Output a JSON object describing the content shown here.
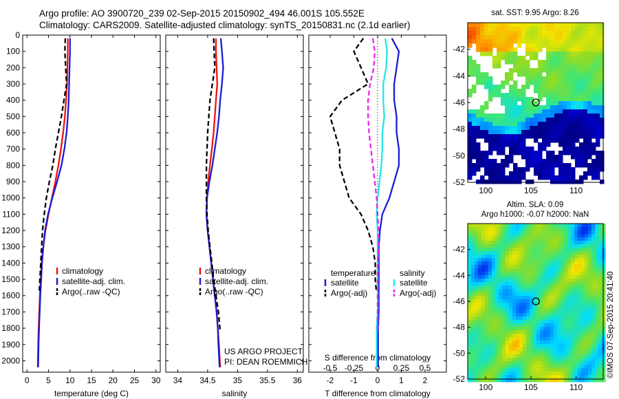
{
  "header": {
    "line1": "Argo profile: AO 3900720_239 02-Sep-2015 20150902_494 46.001S 105.552E",
    "line2": "Climatology: CARS2009. Satellite-adjusted climatology: synTS_20150831.nc (2.1d earlier)"
  },
  "credits": {
    "project": "US ARGO PROJECT",
    "pi": "PI: DEAN ROEMMICH",
    "stamp": "©IMOS 07-Sep-2015 20:41:40"
  },
  "colors": {
    "climatology": "#ee1111",
    "satellite": "#1a1ad6",
    "argo": "#000000",
    "salinity_satellite": "#22e6e6",
    "salinity_argo": "#ee22ee"
  },
  "chart_data": [
    {
      "id": "temperature",
      "type": "line",
      "xlabel": "temperature (deg C)",
      "ylabel": "",
      "xlim": [
        -1,
        31
      ],
      "ylim": [
        2070,
        0
      ],
      "xticks": [
        0,
        5,
        10,
        15,
        20,
        25,
        30
      ],
      "xtick_labels": [
        "0",
        "5",
        "10",
        "15",
        "20",
        "25",
        "30"
      ],
      "yticks": [
        0,
        100,
        200,
        300,
        400,
        500,
        600,
        700,
        800,
        900,
        1000,
        1100,
        1200,
        1300,
        1400,
        1500,
        1600,
        1700,
        1800,
        1900,
        2000
      ],
      "ytick_labels": [
        "0",
        "100",
        "200",
        "300",
        "400",
        "500",
        "600",
        "700",
        "800",
        "900",
        "1000",
        "1100",
        "1200",
        "1300",
        "1400",
        "1500",
        "1600",
        "1700",
        "1800",
        "1900",
        "2000"
      ],
      "legend": [
        "climatology",
        "satellite-adj. clim.",
        "Argo(..raw -QC)"
      ],
      "legend_position": "lower-right",
      "series": [
        {
          "name": "climatology",
          "color": "#ee1111",
          "dash": "solid",
          "x": [
            9.5,
            9.5,
            9.4,
            9.3,
            9.1,
            8.8,
            8.4,
            7.9,
            7.3,
            6.6,
            5.8,
            5.0,
            4.3,
            3.8,
            3.4,
            3.2,
            3.0,
            2.85,
            2.7,
            2.6,
            2.5
          ],
          "y": [
            20,
            100,
            200,
            300,
            400,
            500,
            600,
            700,
            800,
            900,
            1000,
            1100,
            1200,
            1300,
            1400,
            1500,
            1600,
            1700,
            1800,
            1900,
            2040
          ]
        },
        {
          "name": "satellite-adj. clim.",
          "color": "#1a1ad6",
          "dash": "solid",
          "x": [
            10.0,
            10.0,
            9.9,
            9.8,
            9.7,
            9.5,
            9.2,
            8.7,
            8.0,
            7.0,
            5.9,
            4.9,
            4.2,
            3.8,
            3.5,
            3.3,
            3.1,
            2.95,
            2.8,
            2.7,
            2.6
          ],
          "y": [
            20,
            100,
            200,
            300,
            400,
            500,
            600,
            700,
            800,
            900,
            1000,
            1100,
            1200,
            1300,
            1400,
            1500,
            1600,
            1700,
            1800,
            1900,
            2040
          ]
        },
        {
          "name": "Argo(..raw -QC)",
          "color": "#000000",
          "dash": "dashed",
          "x": [
            8.9,
            8.8,
            9.0,
            9.2,
            8.6,
            8.0,
            7.3,
            6.6,
            6.0,
            5.2,
            4.5,
            4.0,
            3.6,
            3.4,
            3.2,
            3.0,
            2.85
          ],
          "y": [
            20,
            100,
            200,
            300,
            400,
            500,
            600,
            700,
            800,
            900,
            1000,
            1100,
            1200,
            1300,
            1400,
            1500,
            1580
          ]
        }
      ]
    },
    {
      "id": "salinity",
      "type": "line",
      "xlabel": "salinity",
      "ylabel": "",
      "xlim": [
        33.8,
        36.1
      ],
      "ylim": [
        2070,
        0
      ],
      "xticks": [
        34,
        34.5,
        35,
        35.5,
        36
      ],
      "xtick_labels": [
        "34",
        "34.5",
        "35",
        "35.5",
        "36"
      ],
      "legend": [
        "climatology",
        "satellite-adj. clim.",
        "Argo(..raw -QC)"
      ],
      "legend_position": "lower-right",
      "series": [
        {
          "name": "climatology",
          "color": "#ee1111",
          "dash": "solid",
          "x": [
            34.64,
            34.64,
            34.65,
            34.66,
            34.64,
            34.62,
            34.6,
            34.57,
            34.54,
            34.51,
            34.49,
            34.48,
            34.5,
            34.53,
            34.56,
            34.59,
            34.62,
            34.65,
            34.67,
            34.69,
            34.71
          ],
          "y": [
            20,
            100,
            200,
            300,
            400,
            500,
            600,
            700,
            800,
            900,
            1000,
            1100,
            1200,
            1300,
            1400,
            1500,
            1600,
            1700,
            1800,
            1900,
            2040
          ]
        },
        {
          "name": "satellite-adj. clim.",
          "color": "#1a1ad6",
          "dash": "solid",
          "x": [
            34.72,
            34.74,
            34.76,
            34.74,
            34.71,
            34.69,
            34.66,
            34.62,
            34.58,
            34.53,
            34.49,
            34.48,
            34.5,
            34.53,
            34.56,
            34.59,
            34.62,
            34.65,
            34.67,
            34.68,
            34.7
          ],
          "y": [
            20,
            100,
            200,
            300,
            400,
            500,
            600,
            700,
            800,
            900,
            1000,
            1100,
            1200,
            1300,
            1400,
            1500,
            1600,
            1700,
            1800,
            1900,
            2040
          ]
        },
        {
          "name": "Argo(..raw -QC)",
          "color": "#000000",
          "dash": "dashed",
          "x": [
            34.6,
            34.61,
            34.62,
            34.58,
            34.54,
            34.52,
            34.5,
            34.49,
            34.48,
            34.48,
            34.48,
            34.49,
            34.51,
            34.54,
            34.57,
            34.6,
            34.64,
            34.68,
            34.71
          ],
          "y": [
            20,
            100,
            200,
            300,
            400,
            500,
            600,
            700,
            800,
            900,
            1000,
            1100,
            1200,
            1300,
            1400,
            1500,
            1600,
            1700,
            1820
          ]
        }
      ]
    },
    {
      "id": "differences",
      "type": "line",
      "xlabel": "T difference from climatology",
      "xlabel_top": "S difference from climatology",
      "ylabel": "",
      "xlim": [
        -2.9,
        2.9
      ],
      "ylim": [
        2070,
        0
      ],
      "xticks": [
        -2,
        -1,
        0,
        1,
        2
      ],
      "xtick_labels": [
        "-2",
        "-1",
        "0",
        "1",
        "2"
      ],
      "sticks": [
        -0.5,
        -0.25,
        0,
        0.25,
        0.5
      ],
      "stick_labels": [
        "-0.5",
        "-0.25",
        "0",
        "0.25",
        "0.5"
      ],
      "legend_headers": [
        "temperature",
        "salinity"
      ],
      "legend": [
        "satellite",
        "Argo(-adj)",
        "satellite",
        "Argo(-adj)"
      ],
      "legend_position": "lower-center",
      "series": [
        {
          "name": "temperature satellite",
          "color": "#1a1ad6",
          "dash": "solid",
          "unit": "T",
          "x": [
            0.6,
            0.9,
            0.8,
            0.7,
            0.7,
            0.8,
            0.8,
            0.9,
            0.9,
            0.7,
            0.5,
            0.2,
            0.1,
            0.05,
            0.05,
            0.05,
            0.05,
            0.05,
            0.02,
            0.02,
            0.02
          ],
          "y": [
            20,
            100,
            200,
            300,
            400,
            500,
            600,
            700,
            800,
            900,
            1000,
            1100,
            1200,
            1300,
            1400,
            1500,
            1600,
            1700,
            1800,
            1900,
            2040
          ]
        },
        {
          "name": "temperature Argo(-adj)",
          "color": "#000000",
          "dash": "dashed",
          "unit": "T",
          "x": [
            -0.6,
            -1.0,
            -0.7,
            -0.4,
            -1.5,
            -2.0,
            -1.8,
            -1.6,
            -1.6,
            -1.4,
            -1.2,
            -0.7,
            -0.4,
            -0.2,
            -0.1,
            -0.1,
            -0.05
          ],
          "y": [
            20,
            100,
            200,
            300,
            400,
            500,
            600,
            700,
            800,
            900,
            1000,
            1100,
            1200,
            1300,
            1400,
            1500,
            1580
          ]
        },
        {
          "name": "salinity satellite",
          "color": "#22e6e6",
          "dash": "solid",
          "unit": "S",
          "x": [
            0.08,
            0.1,
            0.09,
            0.06,
            0.06,
            0.07,
            0.05,
            0.05,
            0.04,
            0.02,
            0.0,
            -0.01,
            0.0,
            0.0,
            0.0,
            0.0,
            0.0,
            0.0,
            -0.01,
            -0.01,
            -0.01
          ],
          "y": [
            20,
            100,
            200,
            300,
            400,
            500,
            600,
            700,
            800,
            900,
            1000,
            1100,
            1200,
            1300,
            1400,
            1500,
            1600,
            1700,
            1800,
            1900,
            2040
          ]
        },
        {
          "name": "salinity Argo(-adj)",
          "color": "#ee22ee",
          "dash": "dashed",
          "unit": "S",
          "x": [
            -0.05,
            -0.03,
            -0.04,
            -0.08,
            -0.1,
            -0.1,
            -0.09,
            -0.07,
            -0.05,
            -0.03,
            -0.01,
            0.0,
            0.01,
            0.01,
            0.0,
            0.0,
            0.0,
            0.0,
            0.0
          ],
          "y": [
            20,
            100,
            200,
            300,
            400,
            500,
            600,
            700,
            800,
            900,
            1000,
            1100,
            1200,
            1300,
            1400,
            1500,
            1600,
            1700,
            1820
          ]
        }
      ]
    },
    {
      "id": "sst_map",
      "type": "heatmap",
      "title": "sat. SST: 9.95 Argo: 8.26",
      "xlim": [
        98,
        113
      ],
      "ylim": [
        -52,
        -40
      ],
      "xticks": [
        100,
        105,
        110
      ],
      "xtick_labels": [
        "100",
        "105",
        "110"
      ],
      "yticks": [
        -42,
        -44,
        -46,
        -48,
        -50,
        -52
      ],
      "ytick_labels": [
        "-42",
        "-44",
        "-46",
        "-48",
        "-50",
        "-52"
      ],
      "marker": {
        "lon": 105.552,
        "lat": -46.001
      }
    },
    {
      "id": "sla_map",
      "type": "heatmap",
      "title": "Altim. SLA: 0.09",
      "subtitle": "Argo h1000: -0.07 h2000: NaN",
      "xlim": [
        98,
        113
      ],
      "ylim": [
        -52,
        -40
      ],
      "xticks": [
        100,
        105,
        110
      ],
      "xtick_labels": [
        "100",
        "105",
        "110"
      ],
      "yticks": [
        -42,
        -44,
        -46,
        -48,
        -50,
        -52
      ],
      "ytick_labels": [
        "-42",
        "-44",
        "-46",
        "-48",
        "-50",
        "-52"
      ],
      "marker": {
        "lon": 105.552,
        "lat": -46.001
      }
    }
  ]
}
